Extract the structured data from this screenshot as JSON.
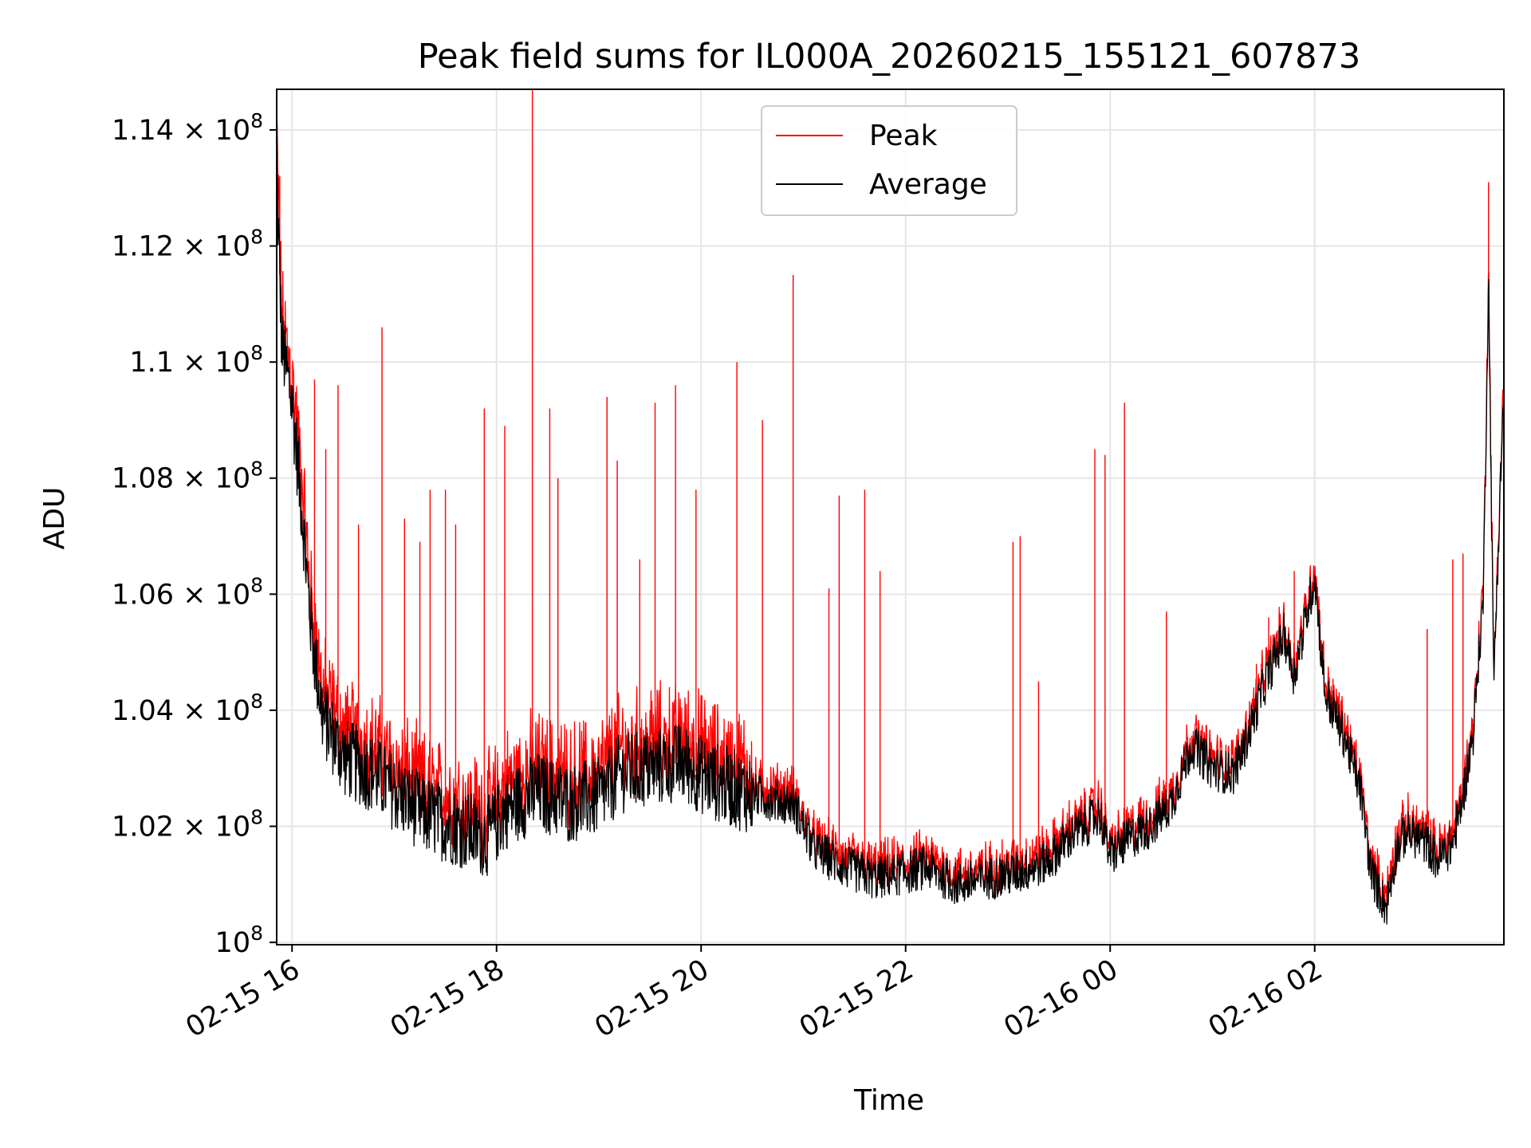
{
  "chart_data": {
    "type": "line",
    "title": "Peak field sums for IL000A_20260215_155121_607873",
    "xlabel": "Time",
    "ylabel": "ADU",
    "ylim": [
      99960000,
      114700000
    ],
    "xlim_hours": [
      15.85,
      27.85
    ],
    "y_tick_values": [
      100000000,
      102000000,
      104000000,
      106000000,
      108000000,
      110000000,
      112000000,
      114000000
    ],
    "y_tick_labels": [
      {
        "mantissa": "",
        "exp": "8"
      },
      {
        "mantissa": "1.02",
        "exp": "8"
      },
      {
        "mantissa": "1.04",
        "exp": "8"
      },
      {
        "mantissa": "1.06",
        "exp": "8"
      },
      {
        "mantissa": "1.08",
        "exp": "8"
      },
      {
        "mantissa": "1.1",
        "exp": "8"
      },
      {
        "mantissa": "1.12",
        "exp": "8"
      },
      {
        "mantissa": "1.14",
        "exp": "8"
      }
    ],
    "y_tick_base": "10",
    "y_tick_times": "×",
    "x_tick_hours": [
      16,
      18,
      20,
      22,
      24,
      26
    ],
    "x_tick_labels": [
      "02-15 16",
      "02-15 18",
      "02-15 20",
      "02-15 22",
      "02-16 00",
      "02-16 02"
    ],
    "grid": true,
    "legend_position": "upper-center",
    "series": [
      {
        "name": "Peak",
        "color": "#ff0000"
      },
      {
        "name": "Average",
        "color": "#000000"
      }
    ],
    "average_trend": [
      [
        15.85,
        113.3
      ],
      [
        15.9,
        110.3
      ],
      [
        16.0,
        109.3
      ],
      [
        16.1,
        107.4
      ],
      [
        16.15,
        106.2
      ],
      [
        16.2,
        105.2
      ],
      [
        16.3,
        103.9
      ],
      [
        16.5,
        103.2
      ],
      [
        16.8,
        102.9
      ],
      [
        17.0,
        102.6
      ],
      [
        17.3,
        102.2
      ],
      [
        17.6,
        102.0
      ],
      [
        17.9,
        101.8
      ],
      [
        18.1,
        102.3
      ],
      [
        18.4,
        102.6
      ],
      [
        18.7,
        102.4
      ],
      [
        19.0,
        102.5
      ],
      [
        19.2,
        102.9
      ],
      [
        19.5,
        103.0
      ],
      [
        19.8,
        103.1
      ],
      [
        20.1,
        102.8
      ],
      [
        20.4,
        102.6
      ],
      [
        20.6,
        102.5
      ],
      [
        20.9,
        102.4
      ],
      [
        21.1,
        101.6
      ],
      [
        21.4,
        101.3
      ],
      [
        21.7,
        101.1
      ],
      [
        22.0,
        101.2
      ],
      [
        22.2,
        101.3
      ],
      [
        22.5,
        101.0
      ],
      [
        22.8,
        101.1
      ],
      [
        23.1,
        101.2
      ],
      [
        23.4,
        101.4
      ],
      [
        23.6,
        101.8
      ],
      [
        23.9,
        102.2
      ],
      [
        24.0,
        101.5
      ],
      [
        24.2,
        101.8
      ],
      [
        24.4,
        102.0
      ],
      [
        24.6,
        102.4
      ],
      [
        24.8,
        103.4
      ],
      [
        25.0,
        103.0
      ],
      [
        25.2,
        102.9
      ],
      [
        25.3,
        103.3
      ],
      [
        25.5,
        104.4
      ],
      [
        25.7,
        105.3
      ],
      [
        25.8,
        104.6
      ],
      [
        26.0,
        106.3
      ],
      [
        26.1,
        104.3
      ],
      [
        26.3,
        103.5
      ],
      [
        26.45,
        102.6
      ],
      [
        26.55,
        101.2
      ],
      [
        26.7,
        100.6
      ],
      [
        26.8,
        101.6
      ],
      [
        26.9,
        101.9
      ],
      [
        27.1,
        101.7
      ],
      [
        27.2,
        101.4
      ],
      [
        27.35,
        101.7
      ],
      [
        27.45,
        102.5
      ],
      [
        27.55,
        103.6
      ],
      [
        27.65,
        106.0
      ],
      [
        27.7,
        111.5
      ],
      [
        27.75,
        104.5
      ],
      [
        27.85,
        109.6
      ]
    ],
    "peak_spikes": [
      [
        15.88,
        113.2
      ],
      [
        16.22,
        109.7
      ],
      [
        16.33,
        108.5
      ],
      [
        16.45,
        109.6
      ],
      [
        16.65,
        107.2
      ],
      [
        16.88,
        110.6
      ],
      [
        17.1,
        107.3
      ],
      [
        17.25,
        106.9
      ],
      [
        17.35,
        107.8
      ],
      [
        17.5,
        107.8
      ],
      [
        17.6,
        107.2
      ],
      [
        17.88,
        109.2
      ],
      [
        18.08,
        108.9
      ],
      [
        18.35,
        114.7
      ],
      [
        18.52,
        109.2
      ],
      [
        18.6,
        108.0
      ],
      [
        19.08,
        109.4
      ],
      [
        19.18,
        108.3
      ],
      [
        19.4,
        106.6
      ],
      [
        19.55,
        109.3
      ],
      [
        19.75,
        109.6
      ],
      [
        19.95,
        107.8
      ],
      [
        20.35,
        110.0
      ],
      [
        20.6,
        109.0
      ],
      [
        20.9,
        111.5
      ],
      [
        21.25,
        106.1
      ],
      [
        21.35,
        107.7
      ],
      [
        21.6,
        107.8
      ],
      [
        21.75,
        106.4
      ],
      [
        23.05,
        106.9
      ],
      [
        23.12,
        107.0
      ],
      [
        23.3,
        104.5
      ],
      [
        23.85,
        108.5
      ],
      [
        23.95,
        108.4
      ],
      [
        24.14,
        109.3
      ],
      [
        24.55,
        105.7
      ],
      [
        25.43,
        104.8
      ],
      [
        25.55,
        105.6
      ],
      [
        25.8,
        106.4
      ],
      [
        27.1,
        105.4
      ],
      [
        27.35,
        106.6
      ],
      [
        27.45,
        106.7
      ],
      [
        27.7,
        113.1
      ],
      [
        27.85,
        110.7
      ]
    ]
  }
}
